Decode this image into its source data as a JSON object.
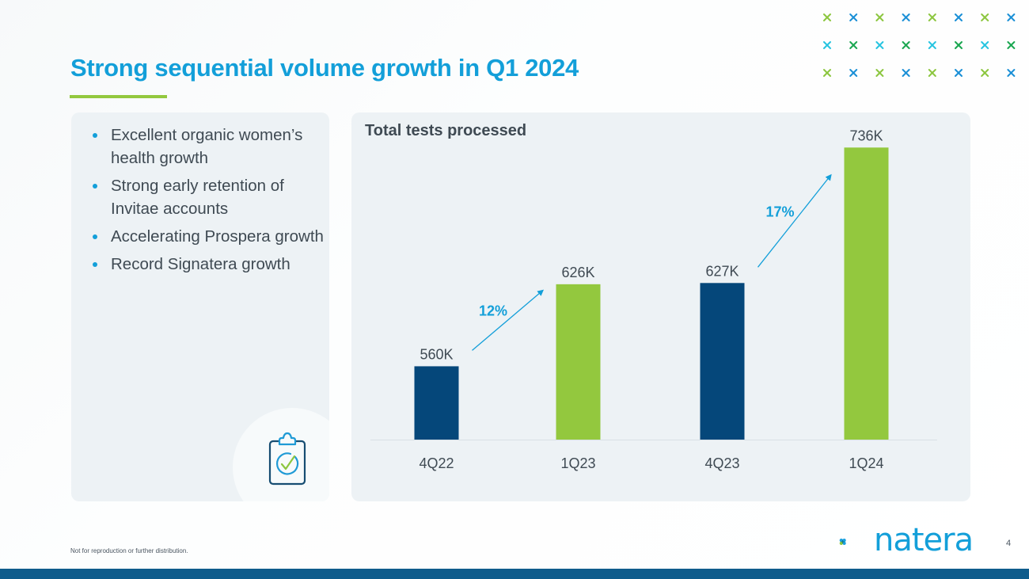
{
  "slide": {
    "title": "Strong sequential volume growth in Q1 2024",
    "page_number": "4",
    "footer_note": "Not for reproduction or further distribution.",
    "logo_text": "natera",
    "colors": {
      "title_blue": "#139fd9",
      "accent_green": "#93c83e",
      "navy": "#05477a",
      "bottom_bar": "#0f5c8c",
      "panel_bg": "#edf2f5"
    }
  },
  "highlights": {
    "bullets": [
      "Excellent organic women’s health growth",
      "Strong early retention of Invitae accounts",
      "Accelerating Prospera growth",
      "Record Signatera growth"
    ],
    "icon": "clipboard-check-icon"
  },
  "decorations": {
    "pattern_icon": "x-mark-icon",
    "rows": 3,
    "cols": 8,
    "row_colors": [
      [
        "#8cc63f",
        "#1a8fd6"
      ],
      [
        "#27c4e0",
        "#1aa650"
      ],
      [
        "#8cc63f",
        "#1a8fd6"
      ]
    ]
  },
  "chart_data": {
    "type": "bar",
    "title": "Total tests processed",
    "xlabel": "",
    "ylabel": "",
    "categories": [
      "4Q22",
      "1Q23",
      "4Q23",
      "1Q24"
    ],
    "values": [
      560,
      626,
      627,
      736
    ],
    "value_labels": [
      "560K",
      "626K",
      "627K",
      "736K"
    ],
    "units": "thousands of tests",
    "bar_colors": [
      "#05477a",
      "#93c83e",
      "#05477a",
      "#93c83e"
    ],
    "ylim": [
      501,
      740
    ],
    "grid": false,
    "legend": "none",
    "annotations": [
      {
        "label": "12%",
        "from": "4Q22",
        "to": "1Q23",
        "type": "growth-arrow"
      },
      {
        "label": "17%",
        "from": "4Q23",
        "to": "1Q24",
        "type": "growth-arrow"
      }
    ]
  }
}
